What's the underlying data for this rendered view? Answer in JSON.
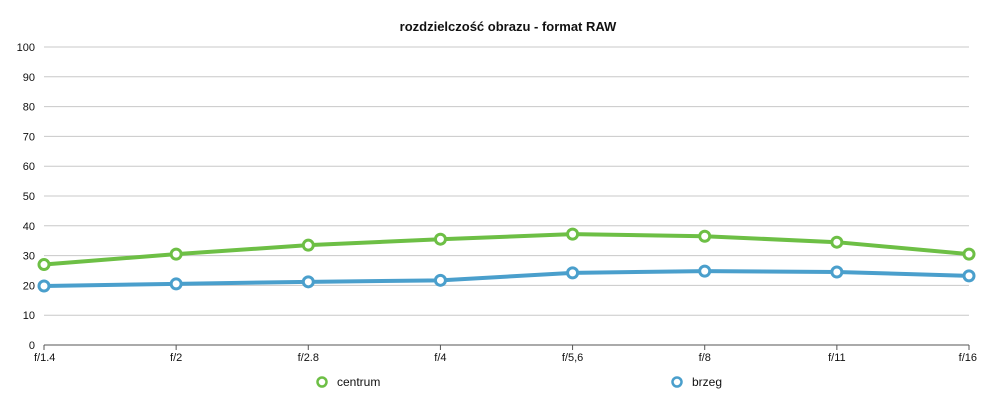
{
  "chart_data": {
    "type": "line",
    "title": "rozdzielczość obrazu - format RAW",
    "xlabel": "",
    "ylabel": "",
    "categories": [
      "f/1.4",
      "f/2",
      "f/2.8",
      "f/4",
      "f/5,6",
      "f/8",
      "f/11",
      "f/16"
    ],
    "ylim": [
      0,
      100
    ],
    "yticks": [
      0,
      10,
      20,
      30,
      40,
      50,
      60,
      70,
      80,
      90,
      100
    ],
    "grid": true,
    "legend_position": "bottom",
    "series": [
      {
        "name": "centrum",
        "color": "#6dbf45",
        "values": [
          27,
          30.5,
          33.5,
          35.5,
          37.2,
          36.5,
          34.5,
          30.5
        ]
      },
      {
        "name": "brzeg",
        "color": "#4a9fcc",
        "values": [
          19.8,
          20.5,
          21.2,
          21.7,
          24.2,
          24.8,
          24.5,
          23.2
        ]
      }
    ]
  }
}
